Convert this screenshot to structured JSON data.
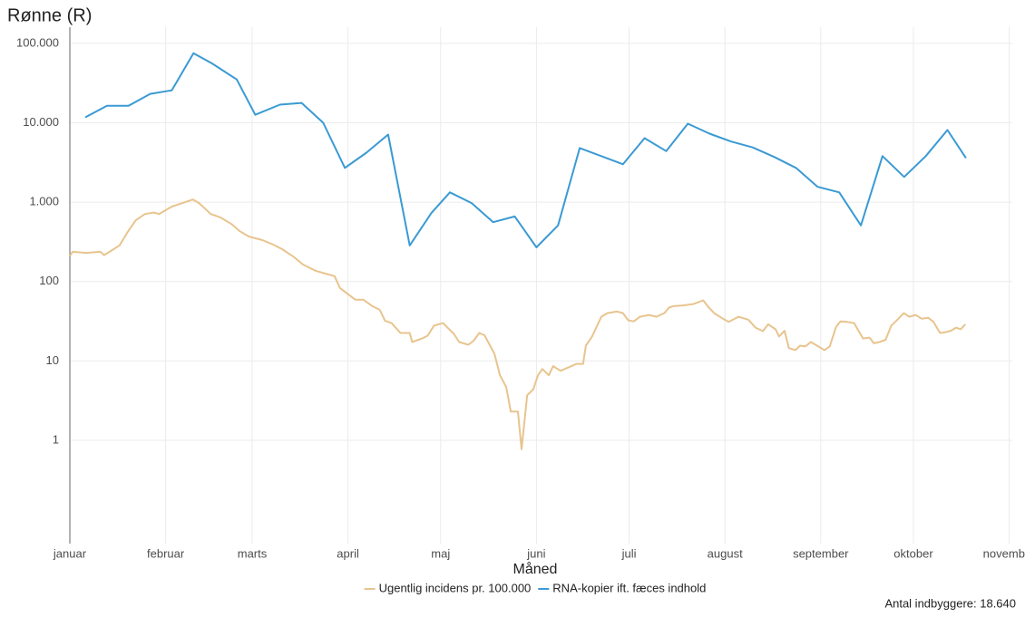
{
  "chart_data": {
    "type": "line",
    "title": "Rønne (R)",
    "xlabel": "Måned",
    "note": "Antal indbyggere: 18.640",
    "log_scale": true,
    "grid": true,
    "legend": "bottom",
    "xlim": [
      0,
      305
    ],
    "xticks": [
      {
        "value": 0,
        "label": "januar"
      },
      {
        "value": 31,
        "label": "februar"
      },
      {
        "value": 59,
        "label": "marts"
      },
      {
        "value": 90,
        "label": "april"
      },
      {
        "value": 120,
        "label": "maj"
      },
      {
        "value": 151,
        "label": "juni"
      },
      {
        "value": 181,
        "label": "juli"
      },
      {
        "value": 212,
        "label": "august"
      },
      {
        "value": 243,
        "label": "september"
      },
      {
        "value": 273,
        "label": "oktober"
      },
      {
        "value": 304,
        "label": "november"
      }
    ],
    "ylim": [
      0.05,
      160000
    ],
    "yticks": [
      1,
      10,
      100,
      {
        "value": 1000,
        "label": "1.000"
      },
      {
        "value": 10000,
        "label": "10.000"
      },
      {
        "value": 100000,
        "label": "100.000"
      }
    ],
    "series": [
      {
        "name": "Ugentlig incidens pr. 100.000",
        "color": "#e8c48e",
        "x": [
          0,
          0.9,
          5.3,
          9.9,
          11.1,
          16.1,
          18.7,
          21.3,
          24.3,
          27.2,
          28.9,
          33,
          36.5,
          39.8,
          41.8,
          45.6,
          48.8,
          52.3,
          55,
          57.9,
          62.3,
          65.8,
          68.7,
          72.2,
          75.4,
          79.5,
          82.7,
          85.7,
          87.4,
          90.1,
          92.4,
          95,
          97.9,
          100.3,
          102,
          104.1,
          107,
          110,
          110.8,
          114,
          115.8,
          117.8,
          120.8,
          122.2,
          124.3,
          126,
          129,
          130.7,
          132.5,
          134.2,
          137.4,
          139.2,
          141.2,
          141.8,
          142.7,
          145,
          146.2,
          148,
          150,
          151.5,
          152.9,
          155,
          156.4,
          158.8,
          162.3,
          164,
          166.1,
          167,
          169,
          170.8,
          172,
          174,
          177,
          179,
          180.7,
          182.5,
          184.5,
          187.4,
          189.8,
          192.4,
          193.9,
          195.3,
          198.5,
          201.8,
          205,
          206.4,
          208.5,
          211.4,
          213.2,
          216.4,
          219.6,
          221.9,
          224.3,
          226,
          228.4,
          229.5,
          231.3,
          232.7,
          234.8,
          236.3,
          238,
          239.8,
          241.8,
          244.2,
          245.9,
          248,
          249.4,
          251.5,
          253.8,
          255.3,
          256.7,
          258.8,
          260.2,
          262,
          264,
          265.8,
          267.8,
          269.9,
          271.6,
          273.7,
          275.7,
          277.8,
          279.5,
          281.6,
          283.3,
          285.1,
          286.8,
          288.3,
          289.8
        ],
        "values": [
          210,
          237,
          230,
          237,
          215,
          285,
          420,
          590,
          710,
          740,
          710,
          880,
          975,
          1080,
          975,
          710,
          640,
          530,
          430,
          370,
          333,
          292,
          256,
          208,
          164,
          137,
          126,
          117,
          83,
          69,
          59,
          59,
          49,
          44,
          32,
          30,
          22.5,
          22.5,
          17.3,
          19.2,
          20.8,
          27.7,
          30,
          26.3,
          21.9,
          17.3,
          16,
          18,
          22.5,
          21,
          12.3,
          6.6,
          4.7,
          3.6,
          2.3,
          2.3,
          0.77,
          3.7,
          4.4,
          6.6,
          7.9,
          6.6,
          8.6,
          7.5,
          8.6,
          9.2,
          9.2,
          15.6,
          20.3,
          28.5,
          36,
          40,
          42,
          40,
          32.5,
          31.5,
          36,
          38,
          36,
          40,
          47,
          49,
          50,
          52,
          58,
          49,
          40,
          34,
          31,
          36,
          33,
          26.3,
          23.7,
          29,
          25,
          20.3,
          24,
          14.5,
          13.7,
          15.6,
          15.2,
          17.3,
          15.6,
          13.7,
          15.2,
          27,
          31.5,
          31,
          30,
          23.7,
          19.2,
          19.7,
          16.7,
          17.3,
          18.5,
          27.7,
          33,
          40,
          36,
          38,
          34,
          35,
          31,
          22.5,
          23,
          24,
          26.3,
          25,
          29
        ]
      },
      {
        "name": "RNA-kopier ift. fæces indhold",
        "color": "#3a9ad3",
        "x": [
          5,
          12,
          19,
          26,
          33,
          40,
          46,
          54,
          60,
          68,
          75,
          82,
          89,
          96,
          103,
          110,
          117,
          123,
          130,
          137,
          144,
          151,
          158,
          165,
          172,
          179,
          186,
          193,
          200,
          207,
          214,
          221,
          228,
          235,
          242,
          249,
          256,
          263,
          270,
          277,
          284,
          290
        ],
        "values": [
          11700,
          16400,
          16400,
          23100,
          25600,
          75000,
          56000,
          35100,
          12600,
          16900,
          17800,
          10000,
          2700,
          4200,
          7100,
          285,
          730,
          1330,
          975,
          560,
          660,
          270,
          510,
          4800,
          3800,
          3000,
          6400,
          4400,
          9750,
          7300,
          5800,
          4900,
          3700,
          2700,
          1560,
          1330,
          510,
          3800,
          2080,
          3800,
          8100,
          3600
        ]
      }
    ]
  }
}
